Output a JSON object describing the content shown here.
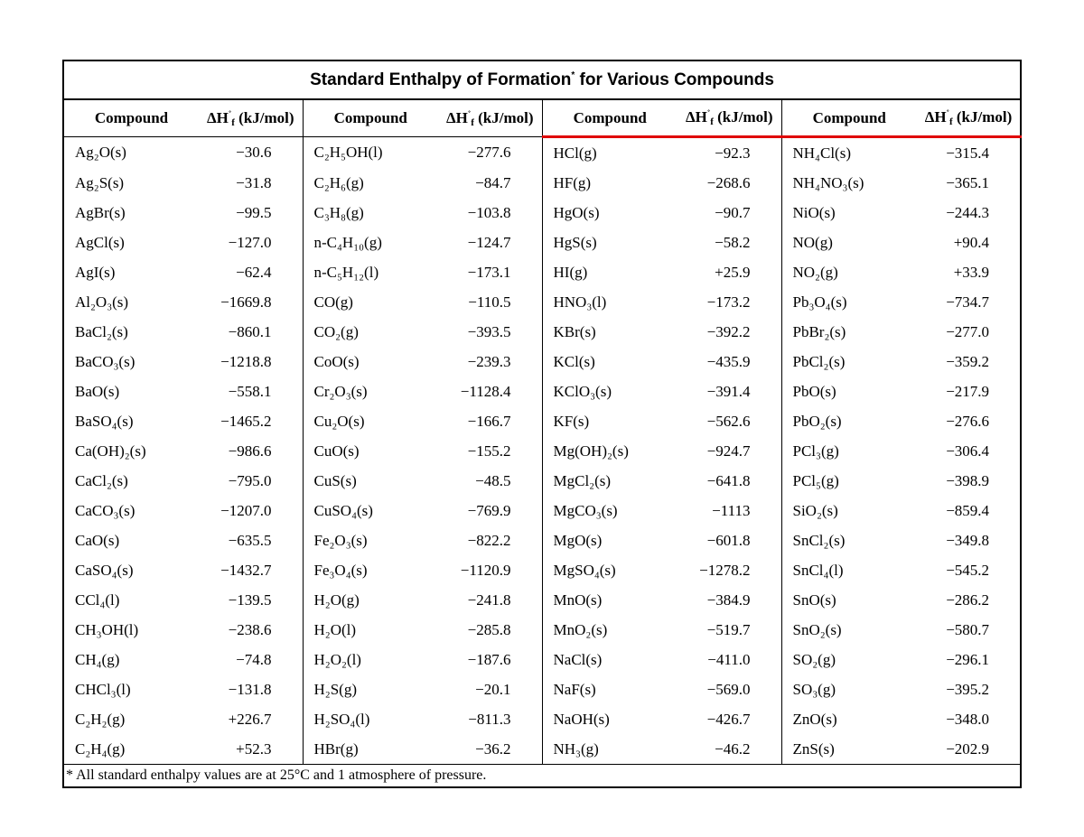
{
  "title": [
    "Standard Enthalpy of Formation",
    "*",
    "for Various Compounds"
  ],
  "header": {
    "compound": "Compound",
    "enthalpy": {
      "symbol": "ΔH",
      "sup": "˚",
      "sub": "f",
      "unit": "(kJ/mol)"
    }
  },
  "table": {
    "rows": [
      [
        "Ag₂O(s)",
        "−30.6",
        "C₂H₅OH(l)",
        "−277.6",
        "HCl(g)",
        "−92.3",
        "NH₄Cl(s)",
        "−315.4"
      ],
      [
        "Ag₂S(s)",
        "−31.8",
        "C₂H₆(g)",
        "−84.7",
        "HF(g)",
        "−268.6",
        "NH₄NO₃(s)",
        "−365.1"
      ],
      [
        "AgBr(s)",
        "−99.5",
        "C₃H₈(g)",
        "−103.8",
        "HgO(s)",
        "−90.7",
        "NiO(s)",
        "−244.3"
      ],
      [
        "AgCl(s)",
        "−127.0",
        "n-C₄H₁₀(g)",
        "−124.7",
        "HgS(s)",
        "−58.2",
        "NO(g)",
        "+90.4"
      ],
      [
        "AgI(s)",
        "−62.4",
        "n-C₅H₁₂(l)",
        "−173.1",
        "HI(g)",
        "+25.9",
        "NO₂(g)",
        "+33.9"
      ],
      [
        "Al₂O₃(s)",
        "−1669.8",
        "CO(g)",
        "−110.5",
        "HNO₃(l)",
        "−173.2",
        "Pb₃O₄(s)",
        "−734.7"
      ],
      [
        "BaCl₂(s)",
        "−860.1",
        "CO₂(g)",
        "−393.5",
        "KBr(s)",
        "−392.2",
        "PbBr₂(s)",
        "−277.0"
      ],
      [
        "BaCO₃(s)",
        "−1218.8",
        "CoO(s)",
        "−239.3",
        "KCl(s)",
        "−435.9",
        "PbCl₂(s)",
        "−359.2"
      ],
      [
        "BaO(s)",
        "−558.1",
        "Cr₂O₃(s)",
        "−1128.4",
        "KClO₃(s)",
        "−391.4",
        "PbO(s)",
        "−217.9"
      ],
      [
        "BaSO₄(s)",
        "−1465.2",
        "Cu₂O(s)",
        "−166.7",
        "KF(s)",
        "−562.6",
        "PbO₂(s)",
        "−276.6"
      ],
      [
        "Ca(OH)₂(s)",
        "−986.6",
        "CuO(s)",
        "−155.2",
        "Mg(OH)₂(s)",
        "−924.7",
        "PCl₃(g)",
        "−306.4"
      ],
      [
        "CaCl₂(s)",
        "−795.0",
        "CuS(s)",
        "−48.5",
        "MgCl₂(s)",
        "−641.8",
        "PCl₅(g)",
        "−398.9"
      ],
      [
        "CaCO₃(s)",
        "−1207.0",
        "CuSO₄(s)",
        "−769.9",
        "MgCO₃(s)",
        "−1113",
        "SiO₂(s)",
        "−859.4"
      ],
      [
        "CaO(s)",
        "−635.5",
        "Fe₂O₃(s)",
        "−822.2",
        "MgO(s)",
        "−601.8",
        "SnCl₂(s)",
        "−349.8"
      ],
      [
        "CaSO₄(s)",
        "−1432.7",
        "Fe₃O₄(s)",
        "−1120.9",
        "MgSO₄(s)",
        "−1278.2",
        "SnCl₄(l)",
        "−545.2"
      ],
      [
        "CCl₄(l)",
        "−139.5",
        "H₂O(g)",
        "−241.8",
        "MnO(s)",
        "−384.9",
        "SnO(s)",
        "−286.2"
      ],
      [
        "CH₃OH(l)",
        "−238.6",
        "H₂O(l)",
        "−285.8",
        "MnO₂(s)",
        "−519.7",
        "SnO₂(s)",
        "−580.7"
      ],
      [
        "CH₄(g)",
        "−74.8",
        "H₂O₂(l)",
        "−187.6",
        "NaCl(s)",
        "−411.0",
        "SO₂(g)",
        "−296.1"
      ],
      [
        "CHCl₃(l)",
        "−131.8",
        "H₂S(g)",
        "−20.1",
        "NaF(s)",
        "−569.0",
        "SO₃(g)",
        "−395.2"
      ],
      [
        "C₂H₂(g)",
        "+226.7",
        "H₂SO₄(l)",
        "−811.3",
        "NaOH(s)",
        "−426.7",
        "ZnO(s)",
        "−348.0"
      ],
      [
        "C₂H₄(g)",
        "+52.3",
        "HBr(g)",
        "−36.2",
        "NH₃(g)",
        "−46.2",
        "ZnS(s)",
        "−202.9"
      ]
    ]
  },
  "footnote": "* All standard enthalpy values are at 25°C and 1 atmosphere of pressure."
}
